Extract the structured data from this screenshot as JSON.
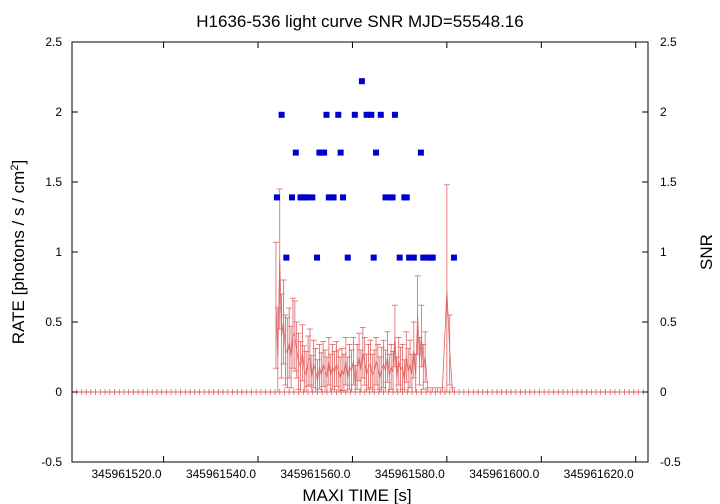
{
  "chart_data": {
    "type": "scatter",
    "title": "H1636-536 light curve  SNR MJD=55548.16",
    "xlabel": "MAXI TIME [s]",
    "ylabel": "RATE [photons / s / cm",
    "ylabel_sup": "2",
    "ylabel_end": "]",
    "y2label": "SNR",
    "xlim": [
      345961500.6,
      345961622.6
    ],
    "ylim": [
      -0.5,
      2.5
    ],
    "y2lim": [
      -0.5,
      2.5
    ],
    "x_ticks": [
      {
        "value": 345961520,
        "label": "345961520.0"
      },
      {
        "value": 345961540,
        "label": "345961540.0"
      },
      {
        "value": 345961560,
        "label": "345961560.0"
      },
      {
        "value": 345961580,
        "label": "345961580.0"
      },
      {
        "value": 345961600,
        "label": "345961600.0"
      },
      {
        "value": 345961620,
        "label": "345961620.0"
      }
    ],
    "y_ticks": [
      {
        "value": -0.5,
        "label": "-0.5"
      },
      {
        "value": 0,
        "label": "0"
      },
      {
        "value": 0.5,
        "label": "0.5"
      },
      {
        "value": 1,
        "label": "1"
      },
      {
        "value": 1.5,
        "label": "1.5"
      },
      {
        "value": 2,
        "label": "2"
      },
      {
        "value": 2.5,
        "label": "2.5"
      }
    ],
    "y2_ticks": [
      {
        "value": -0.5,
        "label": "-0.5"
      },
      {
        "value": 0,
        "label": "0"
      },
      {
        "value": 0.5,
        "label": "0.5"
      },
      {
        "value": 1,
        "label": "1"
      },
      {
        "value": 1.5,
        "label": "1.5"
      },
      {
        "value": 2,
        "label": "2"
      },
      {
        "value": 2.5,
        "label": "2.5"
      }
    ],
    "series": [
      {
        "kind": "rate",
        "color": "#e06060",
        "zero_range": [
          345961500.6,
          345961622.6
        ],
        "zero_step": 1,
        "x": [
          345961543.8,
          345961544.2,
          345961544.6,
          345961545.0,
          345961545.4,
          345961545.8,
          345961546.2,
          345961546.6,
          345961547.0,
          345961547.4,
          345961547.8,
          345961548.2,
          345961548.6,
          345961549.0,
          345961549.4,
          345961549.8,
          345961550.2,
          345961550.6,
          345961551.0,
          345961551.4,
          345961551.8,
          345961552.2,
          345961552.6,
          345961553.0,
          345961553.4,
          345961553.8,
          345961554.2,
          345961554.6,
          345961555.0,
          345961555.4,
          345961555.8,
          345961556.2,
          345961556.6,
          345961557.0,
          345961557.4,
          345961557.8,
          345961558.2,
          345961558.6,
          345961559.0,
          345961559.4,
          345961559.8,
          345961560.2,
          345961560.6,
          345961561.0,
          345961561.4,
          345961561.8,
          345961562.2,
          345961562.6,
          345961563.0,
          345961563.4,
          345961563.8,
          345961564.2,
          345961564.6,
          345961565.0,
          345961565.4,
          345961565.8,
          345961566.2,
          345961566.6,
          345961567.0,
          345961567.4,
          345961567.8,
          345961568.2,
          345961568.6,
          345961569.0,
          345961569.4,
          345961569.8,
          345961570.2,
          345961570.6,
          345961571.0,
          345961571.4,
          345961571.8,
          345961572.2,
          345961572.6,
          345961573.0,
          345961573.4,
          345961573.8,
          345961574.2,
          345961574.6,
          345961575.0,
          345961575.4,
          345961576.0,
          345961577.0,
          345961578.0,
          345961579.0,
          345961580.0,
          345961580.6,
          345961581.2
        ],
        "y": [
          0.62,
          0.25,
          0.95,
          0.4,
          0.5,
          0.3,
          0.28,
          0.35,
          0.25,
          0.42,
          0.4,
          0.3,
          0.22,
          0.18,
          0.28,
          0.15,
          0.12,
          0.22,
          0.25,
          0.1,
          0.2,
          0.15,
          0.08,
          0.18,
          0.12,
          0.2,
          0.15,
          0.1,
          0.22,
          0.12,
          0.18,
          0.14,
          0.2,
          0.15,
          0.1,
          0.16,
          0.12,
          0.22,
          0.1,
          0.18,
          0.15,
          0.22,
          0.05,
          0.18,
          0.25,
          0.15,
          0.28,
          0.22,
          0.12,
          0.18,
          0.2,
          0.12,
          0.15,
          0.22,
          0.18,
          0.1,
          0.16,
          0.2,
          0.15,
          0.25,
          0.12,
          0.18,
          0.14,
          0.4,
          0.1,
          0.22,
          0.16,
          0.18,
          0.08,
          0.25,
          0.15,
          0.2,
          0.12,
          0.3,
          0.12,
          0.55,
          0.22,
          0.4,
          0.18,
          0.25,
          0,
          0,
          0,
          0,
          0.72,
          0.3,
          0
        ],
        "err": [
          0.45,
          0.35,
          0.5,
          0.3,
          0.3,
          0.25,
          0.25,
          0.25,
          0.22,
          0.25,
          0.25,
          0.2,
          0.2,
          0.18,
          0.2,
          0.18,
          0.17,
          0.18,
          0.2,
          0.16,
          0.17,
          0.16,
          0.15,
          0.16,
          0.16,
          0.16,
          0.15,
          0.15,
          0.17,
          0.15,
          0.16,
          0.15,
          0.16,
          0.15,
          0.15,
          0.15,
          0.15,
          0.17,
          0.15,
          0.16,
          0.15,
          0.17,
          0.14,
          0.16,
          0.17,
          0.15,
          0.18,
          0.17,
          0.15,
          0.16,
          0.17,
          0.15,
          0.15,
          0.17,
          0.16,
          0.15,
          0.16,
          0.17,
          0.15,
          0.18,
          0.15,
          0.16,
          0.15,
          0.22,
          0.15,
          0.17,
          0.16,
          0.16,
          0.15,
          0.18,
          0.16,
          0.17,
          0.15,
          0.2,
          0.15,
          0.28,
          0.17,
          0.22,
          0.16,
          0.18,
          0.03,
          0.03,
          0.03,
          0.03,
          0.76,
          0.25,
          0.03
        ]
      },
      {
        "kind": "snr",
        "color": "#0000cc",
        "x": [
          345961544.0,
          345961545.0,
          345961546.0,
          345961547.2,
          345961548.0,
          345961549.0,
          345961549.5,
          345961550.0,
          345961550.5,
          345961551.5,
          345961552.5,
          345961553.0,
          345961553.5,
          345961554.0,
          345961554.5,
          345961555.0,
          345961555.5,
          345961556.0,
          345961557.0,
          345961557.5,
          345961558.0,
          345961559.0,
          345961560.5,
          345961562.0,
          345961563.0,
          345961564.0,
          345961564.5,
          345961565.0,
          345961566.0,
          345961567.0,
          345961568.0,
          345961568.5,
          345961569.0,
          345961570.0,
          345961571.0,
          345961571.5,
          345961572.0,
          345961573.0,
          345961574.5,
          345961575.0,
          345961576.0,
          345961576.5,
          345961577.0,
          345961581.5
        ],
        "y": [
          1.39,
          1.98,
          0.96,
          1.39,
          1.71,
          1.39,
          1.39,
          1.39,
          1.39,
          1.39,
          0.96,
          1.71,
          1.71,
          1.71,
          1.98,
          1.39,
          1.39,
          1.39,
          1.98,
          1.71,
          1.39,
          0.96,
          1.98,
          2.22,
          1.98,
          1.98,
          0.96,
          1.71,
          1.98,
          1.39,
          1.39,
          1.39,
          1.98,
          0.96,
          1.39,
          1.39,
          0.96,
          0.96,
          1.71,
          0.96,
          0.96,
          0.96,
          0.96,
          0.96
        ]
      }
    ]
  }
}
